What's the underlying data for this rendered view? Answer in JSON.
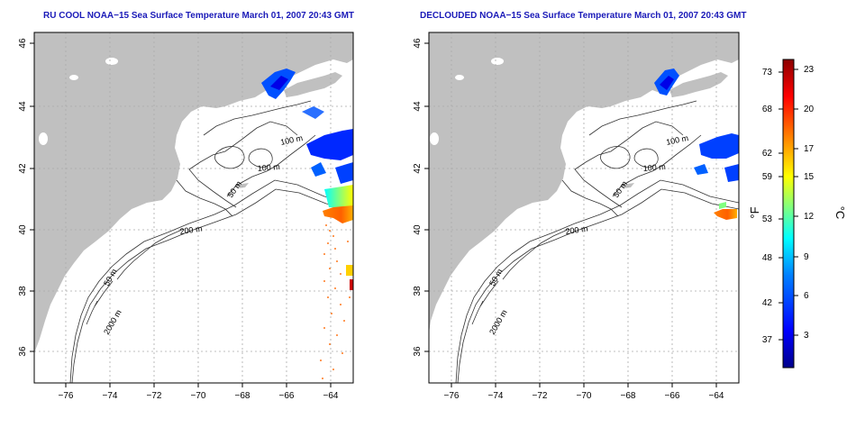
{
  "panels": [
    {
      "title": "RU COOL NOAA−15 Sea Surface Temperature March 01, 2007 20:43 GMT",
      "lon_ticks": [
        "−76",
        "−74",
        "−72",
        "−70",
        "−68",
        "−66",
        "−64"
      ],
      "lat_ticks": [
        "36",
        "38",
        "40",
        "42",
        "44",
        "46"
      ],
      "contour_labels": [
        "100 m",
        "100 m",
        "50 m",
        "200 m",
        "50 m",
        "2000 m"
      ]
    },
    {
      "title": "DECLOUDED NOAA−15 Sea Surface Temperature March 01, 2007 20:43 GMT",
      "lon_ticks": [
        "−76",
        "−74",
        "−72",
        "−70",
        "−68",
        "−66",
        "−64"
      ],
      "lat_ticks": [
        "36",
        "38",
        "40",
        "42",
        "44",
        "46"
      ],
      "contour_labels": [
        "100 m",
        "100 m",
        "50 m",
        "200 m",
        "50 m",
        "2000 m"
      ]
    }
  ],
  "colorbar": {
    "f_unit": "°F",
    "c_unit": "°C",
    "f_ticks": [
      "73",
      "68",
      "62",
      "59",
      "53",
      "48",
      "42",
      "37"
    ],
    "c_ticks": [
      "23",
      "20",
      "17",
      "15",
      "12",
      "9",
      "6",
      "3"
    ]
  },
  "colors": {
    "title": "#1a1ab8",
    "land": "#c0c0c0",
    "grid": "#aaaaaa"
  }
}
